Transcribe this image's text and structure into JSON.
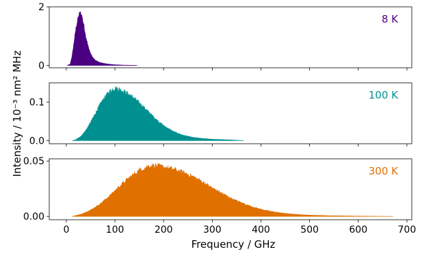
{
  "chart_data": {
    "type": "area",
    "xlabel": "Frequency / GHz",
    "ylabel": "Intensity / 10⁻³ nm² MHz",
    "xlim": [
      -35,
      710
    ],
    "xticks": [
      0,
      100,
      200,
      300,
      400,
      500,
      600,
      700
    ],
    "grid": false,
    "panels": [
      {
        "label": "8 K",
        "color": "#4b0082",
        "ylim": [
          -0.08,
          2.0
        ],
        "yticks": [
          {
            "value": 0,
            "label": "0"
          },
          {
            "value": 2,
            "label": "2"
          }
        ],
        "x": [
          2,
          8,
          12,
          16,
          20,
          24,
          28,
          32,
          36,
          40,
          45,
          50,
          55,
          60,
          70,
          80,
          90,
          100,
          120,
          145
        ],
        "y": [
          0.0,
          0.05,
          0.35,
          0.85,
          1.35,
          1.68,
          1.9,
          1.78,
          1.45,
          1.05,
          0.68,
          0.42,
          0.27,
          0.18,
          0.1,
          0.065,
          0.04,
          0.025,
          0.01,
          0.003
        ]
      },
      {
        "label": "100 K",
        "color": "#009090",
        "ylim": [
          -0.008,
          0.15
        ],
        "yticks": [
          {
            "value": 0.0,
            "label": "0.0"
          },
          {
            "value": 0.1,
            "label": "0.1"
          }
        ],
        "x": [
          12,
          20,
          30,
          40,
          50,
          60,
          70,
          80,
          90,
          100,
          110,
          120,
          130,
          140,
          150,
          160,
          170,
          180,
          190,
          200,
          220,
          240,
          260,
          280,
          300,
          320,
          340,
          365
        ],
        "y": [
          0.0,
          0.003,
          0.012,
          0.028,
          0.05,
          0.075,
          0.1,
          0.12,
          0.135,
          0.143,
          0.14,
          0.133,
          0.125,
          0.115,
          0.103,
          0.09,
          0.077,
          0.064,
          0.052,
          0.041,
          0.025,
          0.015,
          0.009,
          0.006,
          0.004,
          0.003,
          0.002,
          0.0
        ]
      },
      {
        "label": "300 K",
        "color": "#e07000",
        "ylim": [
          -0.003,
          0.052
        ],
        "yticks": [
          {
            "value": 0.0,
            "label": "0.00"
          },
          {
            "value": 0.05,
            "label": "0.05"
          }
        ],
        "x": [
          12,
          30,
          50,
          70,
          90,
          110,
          130,
          150,
          170,
          180,
          200,
          220,
          240,
          260,
          280,
          300,
          320,
          340,
          360,
          380,
          400,
          420,
          440,
          460,
          480,
          500,
          540,
          580,
          620,
          672
        ],
        "y": [
          0.0,
          0.002,
          0.006,
          0.012,
          0.02,
          0.029,
          0.037,
          0.044,
          0.048,
          0.0485,
          0.047,
          0.045,
          0.042,
          0.038,
          0.033,
          0.027,
          0.022,
          0.017,
          0.013,
          0.0095,
          0.0068,
          0.0048,
          0.0034,
          0.0024,
          0.0017,
          0.0012,
          0.0007,
          0.0004,
          0.0002,
          0.0
        ]
      }
    ]
  }
}
